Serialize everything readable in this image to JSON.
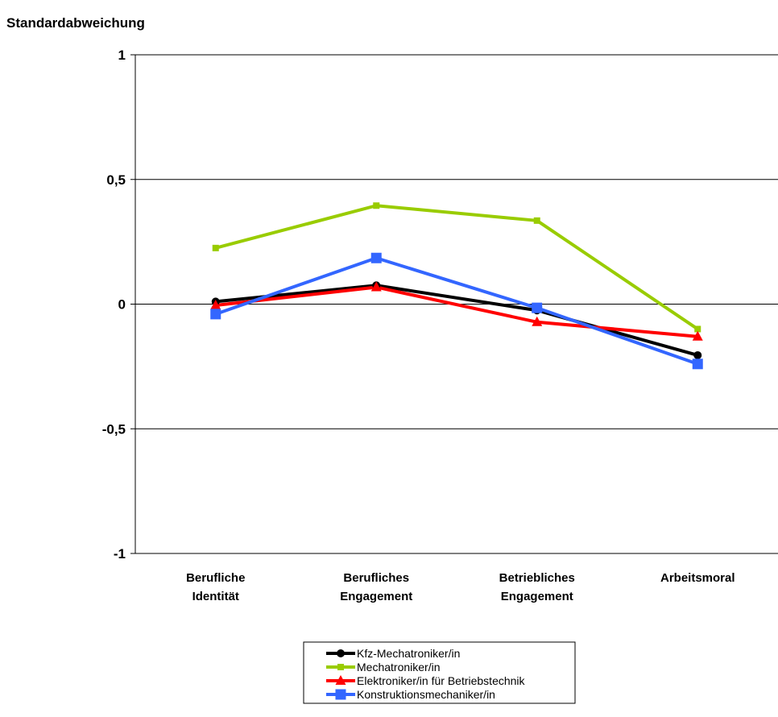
{
  "chart_data": {
    "type": "line",
    "ylabel": "Standardabweichung",
    "ylim": [
      -1,
      1
    ],
    "yticks": [
      {
        "value": 1,
        "label": "1"
      },
      {
        "value": 0.5,
        "label": "0,5"
      },
      {
        "value": 0,
        "label": "0"
      },
      {
        "value": -0.5,
        "label": "-0,5"
      },
      {
        "value": -1,
        "label": "-1"
      }
    ],
    "categories": [
      [
        "Berufliche",
        "Identität"
      ],
      [
        "Berufliches",
        "Engagement"
      ],
      [
        "Betriebliches",
        "Engagement"
      ],
      [
        "Arbeitsmoral"
      ]
    ],
    "grid": "horizontal",
    "legend_position": "bottom-center",
    "series": [
      {
        "name": "Kfz-Mechatroniker/in",
        "color": "#000000",
        "marker": "circle",
        "values": [
          0.01,
          0.075,
          -0.025,
          -0.205
        ]
      },
      {
        "name": "Mechatroniker/in",
        "color": "#99cc00",
        "marker": "square-small",
        "values": [
          0.225,
          0.395,
          0.335,
          -0.1
        ]
      },
      {
        "name": "Elektroniker/in für Betriebstechnik",
        "color": "#ff0000",
        "marker": "triangle",
        "values": [
          -0.005,
          0.068,
          -0.072,
          -0.13
        ]
      },
      {
        "name": "Konstruktionsmechaniker/in",
        "color": "#3366ff",
        "marker": "square",
        "values": [
          -0.04,
          0.185,
          -0.015,
          -0.24
        ]
      }
    ]
  }
}
